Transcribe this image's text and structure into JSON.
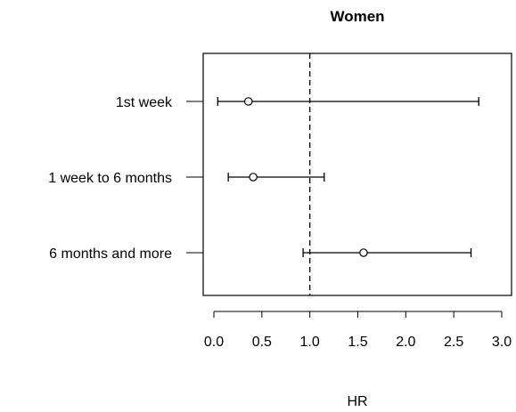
{
  "chart_data": {
    "type": "forest",
    "title": "Women",
    "xlabel": "HR",
    "ylabel": "",
    "xlim": [
      0.0,
      3.0
    ],
    "xticks": [
      "0.0",
      "0.5",
      "1.0",
      "1.5",
      "2.0",
      "2.5",
      "3.0"
    ],
    "reference_line": 1.0,
    "grid": false,
    "rows": [
      {
        "label": "1st week",
        "estimate": 0.36,
        "lower": 0.04,
        "upper": 2.76
      },
      {
        "label": "1 week to 6 months",
        "estimate": 0.41,
        "lower": 0.15,
        "upper": 1.15
      },
      {
        "label": "6 months and more",
        "estimate": 1.56,
        "lower": 0.93,
        "upper": 2.68
      }
    ]
  }
}
